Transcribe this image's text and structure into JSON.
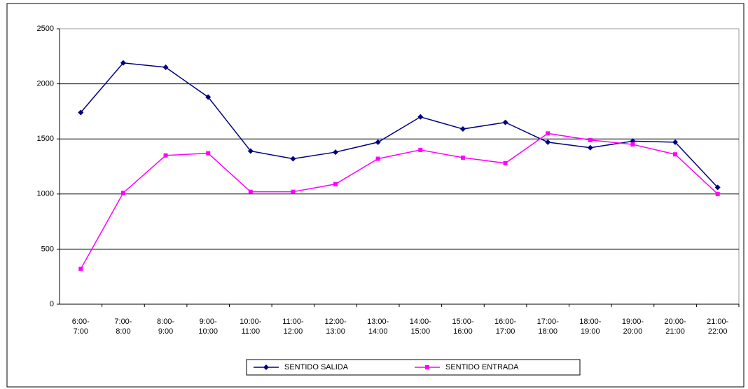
{
  "chart_data": {
    "type": "line",
    "categories": [
      "6:00-\n7:00",
      "7:00-\n8:00",
      "8:00-\n9:00",
      "9:00-\n10:00",
      "10:00-\n11:00",
      "11:00-\n12:00",
      "12:00-\n13:00",
      "13:00-\n14:00",
      "14:00-\n15:00",
      "15:00-\n16:00",
      "16:00-\n17:00",
      "17:00-\n18:00",
      "18:00-\n19:00",
      "19:00-\n20:00",
      "20:00-\n21:00",
      "21:00-\n22:00"
    ],
    "series": [
      {
        "name": "SENTIDO SALIDA",
        "color": "#000080",
        "values": [
          1740,
          2190,
          2150,
          1880,
          1390,
          1320,
          1380,
          1470,
          1700,
          1590,
          1650,
          1470,
          1420,
          1480,
          1470,
          1060
        ]
      },
      {
        "name": "SENTIDO ENTRADA",
        "color": "#ff00ff",
        "values": [
          320,
          1010,
          1350,
          1370,
          1020,
          1020,
          1090,
          1320,
          1400,
          1330,
          1280,
          1550,
          1490,
          1450,
          1360,
          1000
        ]
      }
    ],
    "ylim": [
      0,
      2500
    ],
    "yticks": [
      0,
      500,
      1000,
      1500,
      2000,
      2500
    ],
    "grid": true
  }
}
